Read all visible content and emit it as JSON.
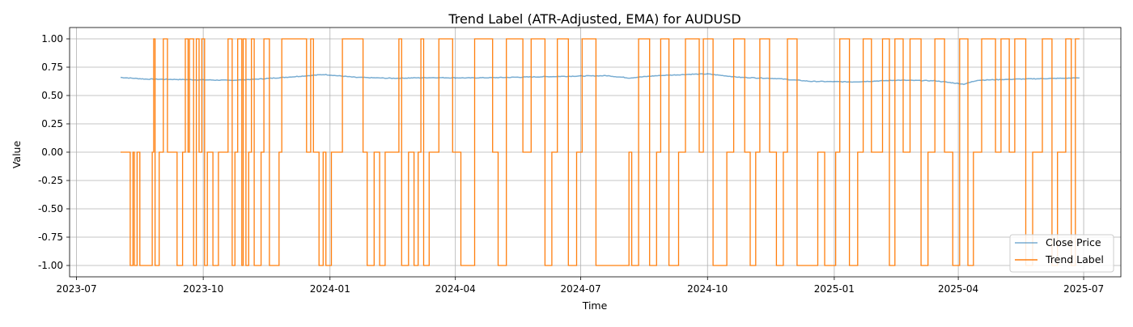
{
  "chart_data": {
    "type": "line",
    "title": "Trend Label (ATR-Adjusted, EMA) for AUDUSD",
    "xlabel": "Time",
    "ylabel": "Value",
    "xlim": [
      "2023-06-26",
      "2025-07-28"
    ],
    "ylim": [
      -1.1,
      1.1
    ],
    "x_ticks": [
      "2023-07",
      "2023-10",
      "2024-01",
      "2024-04",
      "2024-07",
      "2024-10",
      "2025-01",
      "2025-04",
      "2025-07"
    ],
    "y_ticks": [
      "-1.00",
      "-0.75",
      "-0.50",
      "-0.25",
      "0.00",
      "0.25",
      "0.50",
      "0.75",
      "1.00"
    ],
    "grid": true,
    "legend_position": "lower-right",
    "series": [
      {
        "name": "Close Price",
        "color": "#1f77b4",
        "points": [
          [
            "2023-08-02",
            0.66
          ],
          [
            "2023-08-20",
            0.645
          ],
          [
            "2023-09-10",
            0.642
          ],
          [
            "2023-10-01",
            0.638
          ],
          [
            "2023-10-20",
            0.634
          ],
          [
            "2023-11-10",
            0.645
          ],
          [
            "2023-12-01",
            0.662
          ],
          [
            "2023-12-28",
            0.685
          ],
          [
            "2024-01-20",
            0.66
          ],
          [
            "2024-02-15",
            0.652
          ],
          [
            "2024-03-15",
            0.658
          ],
          [
            "2024-04-10",
            0.655
          ],
          [
            "2024-05-01",
            0.658
          ],
          [
            "2024-06-01",
            0.665
          ],
          [
            "2024-07-01",
            0.672
          ],
          [
            "2024-07-20",
            0.675
          ],
          [
            "2024-08-05",
            0.655
          ],
          [
            "2024-08-25",
            0.675
          ],
          [
            "2024-09-20",
            0.688
          ],
          [
            "2024-10-01",
            0.69
          ],
          [
            "2024-10-25",
            0.66
          ],
          [
            "2024-11-20",
            0.65
          ],
          [
            "2024-12-15",
            0.625
          ],
          [
            "2025-01-15",
            0.62
          ],
          [
            "2025-02-15",
            0.635
          ],
          [
            "2025-03-15",
            0.63
          ],
          [
            "2025-04-05",
            0.6
          ],
          [
            "2025-04-15",
            0.635
          ],
          [
            "2025-05-15",
            0.645
          ],
          [
            "2025-06-28",
            0.655
          ]
        ]
      },
      {
        "name": "Trend Label",
        "color": "#ff7f0e",
        "steps": [
          [
            "2023-08-02",
            0
          ],
          [
            "2023-08-09",
            -1
          ],
          [
            "2023-08-11",
            0
          ],
          [
            "2023-08-12",
            -1
          ],
          [
            "2023-08-14",
            0
          ],
          [
            "2023-08-16",
            -1
          ],
          [
            "2023-08-25",
            0
          ],
          [
            "2023-08-26",
            1
          ],
          [
            "2023-08-27",
            -1
          ],
          [
            "2023-08-30",
            0
          ],
          [
            "2023-09-02",
            1
          ],
          [
            "2023-09-05",
            0
          ],
          [
            "2023-09-12",
            -1
          ],
          [
            "2023-09-16",
            0
          ],
          [
            "2023-09-18",
            1
          ],
          [
            "2023-09-20",
            0
          ],
          [
            "2023-09-21",
            1
          ],
          [
            "2023-09-24",
            -1
          ],
          [
            "2023-09-26",
            1
          ],
          [
            "2023-09-28",
            0
          ],
          [
            "2023-09-30",
            1
          ],
          [
            "2023-10-02",
            -1
          ],
          [
            "2023-10-04",
            0
          ],
          [
            "2023-10-08",
            -1
          ],
          [
            "2023-10-12",
            0
          ],
          [
            "2023-10-19",
            1
          ],
          [
            "2023-10-22",
            -1
          ],
          [
            "2023-10-24",
            0
          ],
          [
            "2023-10-26",
            1
          ],
          [
            "2023-10-29",
            -1
          ],
          [
            "2023-10-30",
            1
          ],
          [
            "2023-11-01",
            -1
          ],
          [
            "2023-11-03",
            0
          ],
          [
            "2023-11-05",
            1
          ],
          [
            "2023-11-07",
            -1
          ],
          [
            "2023-11-12",
            0
          ],
          [
            "2023-11-14",
            1
          ],
          [
            "2023-11-18",
            -1
          ],
          [
            "2023-11-25",
            0
          ],
          [
            "2023-11-27",
            1
          ],
          [
            "2023-12-15",
            0
          ],
          [
            "2023-12-18",
            1
          ],
          [
            "2023-12-20",
            0
          ],
          [
            "2023-12-24",
            -1
          ],
          [
            "2023-12-27",
            0
          ],
          [
            "2023-12-29",
            -1
          ],
          [
            "2024-01-02",
            0
          ],
          [
            "2024-01-10",
            1
          ],
          [
            "2024-01-25",
            0
          ],
          [
            "2024-01-28",
            -1
          ],
          [
            "2024-02-02",
            0
          ],
          [
            "2024-02-06",
            -1
          ],
          [
            "2024-02-10",
            0
          ],
          [
            "2024-02-20",
            1
          ],
          [
            "2024-02-22",
            -1
          ],
          [
            "2024-02-27",
            0
          ],
          [
            "2024-03-02",
            -1
          ],
          [
            "2024-03-05",
            0
          ],
          [
            "2024-03-07",
            1
          ],
          [
            "2024-03-09",
            -1
          ],
          [
            "2024-03-13",
            0
          ],
          [
            "2024-03-20",
            1
          ],
          [
            "2024-03-30",
            0
          ],
          [
            "2024-04-05",
            -1
          ],
          [
            "2024-04-15",
            1
          ],
          [
            "2024-04-28",
            0
          ],
          [
            "2024-05-02",
            -1
          ],
          [
            "2024-05-08",
            1
          ],
          [
            "2024-05-20",
            0
          ],
          [
            "2024-05-26",
            1
          ],
          [
            "2024-06-05",
            -1
          ],
          [
            "2024-06-10",
            0
          ],
          [
            "2024-06-14",
            1
          ],
          [
            "2024-06-22",
            -1
          ],
          [
            "2024-06-28",
            0
          ],
          [
            "2024-07-02",
            1
          ],
          [
            "2024-07-12",
            -1
          ],
          [
            "2024-08-05",
            0
          ],
          [
            "2024-08-07",
            -1
          ],
          [
            "2024-08-12",
            1
          ],
          [
            "2024-08-20",
            -1
          ],
          [
            "2024-08-25",
            0
          ],
          [
            "2024-08-28",
            1
          ],
          [
            "2024-09-03",
            -1
          ],
          [
            "2024-09-10",
            0
          ],
          [
            "2024-09-15",
            1
          ],
          [
            "2024-09-25",
            0
          ],
          [
            "2024-09-28",
            1
          ],
          [
            "2024-10-05",
            -1
          ],
          [
            "2024-10-15",
            0
          ],
          [
            "2024-10-20",
            1
          ],
          [
            "2024-10-28",
            0
          ],
          [
            "2024-11-01",
            -1
          ],
          [
            "2024-11-05",
            0
          ],
          [
            "2024-11-08",
            1
          ],
          [
            "2024-11-15",
            0
          ],
          [
            "2024-11-20",
            -1
          ],
          [
            "2024-11-25",
            0
          ],
          [
            "2024-11-28",
            1
          ],
          [
            "2024-12-05",
            -1
          ],
          [
            "2024-12-20",
            0
          ],
          [
            "2024-12-25",
            -1
          ],
          [
            "2025-01-02",
            0
          ],
          [
            "2025-01-05",
            1
          ],
          [
            "2025-01-12",
            -1
          ],
          [
            "2025-01-18",
            0
          ],
          [
            "2025-01-22",
            1
          ],
          [
            "2025-01-28",
            0
          ],
          [
            "2025-02-05",
            1
          ],
          [
            "2025-02-10",
            -1
          ],
          [
            "2025-02-14",
            1
          ],
          [
            "2025-02-20",
            0
          ],
          [
            "2025-02-25",
            1
          ],
          [
            "2025-03-05",
            -1
          ],
          [
            "2025-03-10",
            0
          ],
          [
            "2025-03-15",
            1
          ],
          [
            "2025-03-22",
            0
          ],
          [
            "2025-03-28",
            -1
          ],
          [
            "2025-04-02",
            1
          ],
          [
            "2025-04-08",
            -1
          ],
          [
            "2025-04-12",
            0
          ],
          [
            "2025-04-18",
            1
          ],
          [
            "2025-04-28",
            0
          ],
          [
            "2025-05-02",
            1
          ],
          [
            "2025-05-08",
            0
          ],
          [
            "2025-05-12",
            1
          ],
          [
            "2025-05-20",
            -1
          ],
          [
            "2025-05-25",
            0
          ],
          [
            "2025-06-01",
            1
          ],
          [
            "2025-06-08",
            -1
          ],
          [
            "2025-06-12",
            0
          ],
          [
            "2025-06-18",
            1
          ],
          [
            "2025-06-22",
            -1
          ],
          [
            "2025-06-25",
            1
          ],
          [
            "2025-06-28",
            1
          ]
        ]
      }
    ]
  }
}
